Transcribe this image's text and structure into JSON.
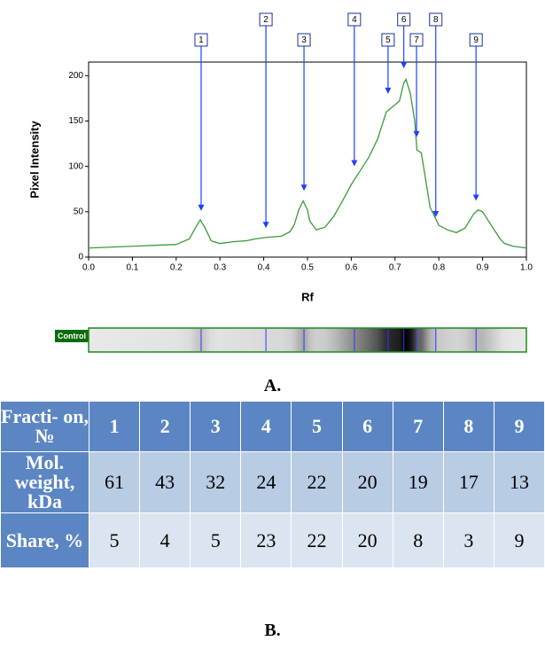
{
  "chart_data": {
    "type": "line",
    "x_label": "Rf",
    "y_label": "Pixel Intensity",
    "xlim": [
      0,
      1
    ],
    "ylim": [
      0,
      215
    ],
    "xticks": [
      {
        "value": 0,
        "label": "0.0"
      },
      0.1,
      0.2,
      0.3,
      0.4,
      0.5,
      0.6,
      0.7,
      0.8,
      0.9,
      {
        "value": 1,
        "label": "1.0"
      }
    ],
    "yticks": [
      0,
      50,
      100,
      150,
      200
    ],
    "series": [
      {
        "color": "#3a9a3a",
        "x": [
          0,
          0.05,
          0.1,
          0.15,
          0.2,
          0.23,
          0.245,
          0.255,
          0.265,
          0.28,
          0.3,
          0.33,
          0.36,
          0.38,
          0.41,
          0.44,
          0.46,
          0.47,
          0.48,
          0.49,
          0.5,
          0.505,
          0.52,
          0.54,
          0.56,
          0.58,
          0.6,
          0.62,
          0.64,
          0.66,
          0.68,
          0.7,
          0.71,
          0.72,
          0.725,
          0.735,
          0.745,
          0.75,
          0.76,
          0.77,
          0.78,
          0.8,
          0.82,
          0.84,
          0.86,
          0.88,
          0.89,
          0.9,
          0.92,
          0.94,
          0.95,
          0.97,
          1.0
        ],
        "values": [
          10,
          11,
          12,
          13,
          14,
          20,
          33,
          41,
          33,
          18,
          15,
          17,
          18,
          20,
          22,
          23,
          28,
          36,
          52,
          62,
          52,
          40,
          30,
          33,
          45,
          62,
          80,
          95,
          110,
          130,
          160,
          168,
          172,
          192,
          196,
          180,
          150,
          118,
          115,
          85,
          55,
          35,
          30,
          27,
          32,
          48,
          52,
          50,
          35,
          20,
          15,
          12,
          10
        ]
      }
    ],
    "markers": [
      {
        "label": "1",
        "x": 0.257,
        "y": 51
      },
      {
        "label": "2",
        "x": 0.405,
        "y": 32
      },
      {
        "label": "3",
        "x": 0.492,
        "y": 73
      },
      {
        "label": "4",
        "x": 0.607,
        "y": 100
      },
      {
        "label": "5",
        "x": 0.684,
        "y": 180
      },
      {
        "label": "6",
        "x": 0.72,
        "y": 208
      },
      {
        "label": "7",
        "x": 0.749,
        "y": 132
      },
      {
        "label": "8",
        "x": 0.793,
        "y": 44
      },
      {
        "label": "9",
        "x": 0.885,
        "y": 62
      }
    ],
    "marker_color": "#1f3fff",
    "gel_label": "Control"
  },
  "figure": {
    "label_a": "A.",
    "label_b": "B."
  },
  "table": {
    "rows": [
      [
        "Fracti- on, №",
        "1",
        "2",
        "3",
        "4",
        "5",
        "6",
        "7",
        "8",
        "9"
      ],
      [
        "Mol. weight, kDa",
        "61",
        "43",
        "32",
        "24",
        "22",
        "20",
        "19",
        "17",
        "13"
      ],
      [
        "Share, %",
        "5",
        "4",
        "5",
        "23",
        "22",
        "20",
        "8",
        "3",
        "9"
      ]
    ]
  }
}
